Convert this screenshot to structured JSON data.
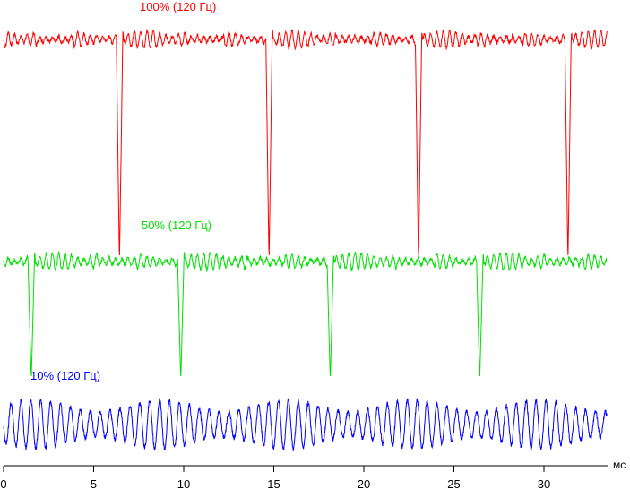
{
  "chart_data": {
    "type": "line",
    "title": "",
    "xlabel": "мс",
    "ylabel": "",
    "xlim": [
      0,
      35
    ],
    "x_ticks": [
      0,
      5,
      10,
      15,
      20,
      25,
      30
    ],
    "x_tick_labels": [
      "0",
      "5",
      "10",
      "15",
      "20",
      "25",
      "30"
    ],
    "grid": false,
    "legend": "none",
    "series": [
      {
        "name": "100% (120 Гц)",
        "color": "#ff0000",
        "dip_times_ms": [
          6.4,
          14.7,
          23.0,
          31.3
        ],
        "dip_width_ms": 0.35,
        "ripple_period_ms": 0.35,
        "duration_ms": 33.5
      },
      {
        "name": "50% (120 Гц)",
        "color": "#00e000",
        "dip_times_ms": [
          1.5,
          9.8,
          18.1,
          26.4
        ],
        "dip_width_ms": 0.35,
        "ripple_period_ms": 0.35,
        "duration_ms": 33.5
      },
      {
        "name": "10% (120 Гц)",
        "color": "#0000ff",
        "oscillation_period_ms": 0.55,
        "duration_ms": 33.5
      }
    ]
  }
}
